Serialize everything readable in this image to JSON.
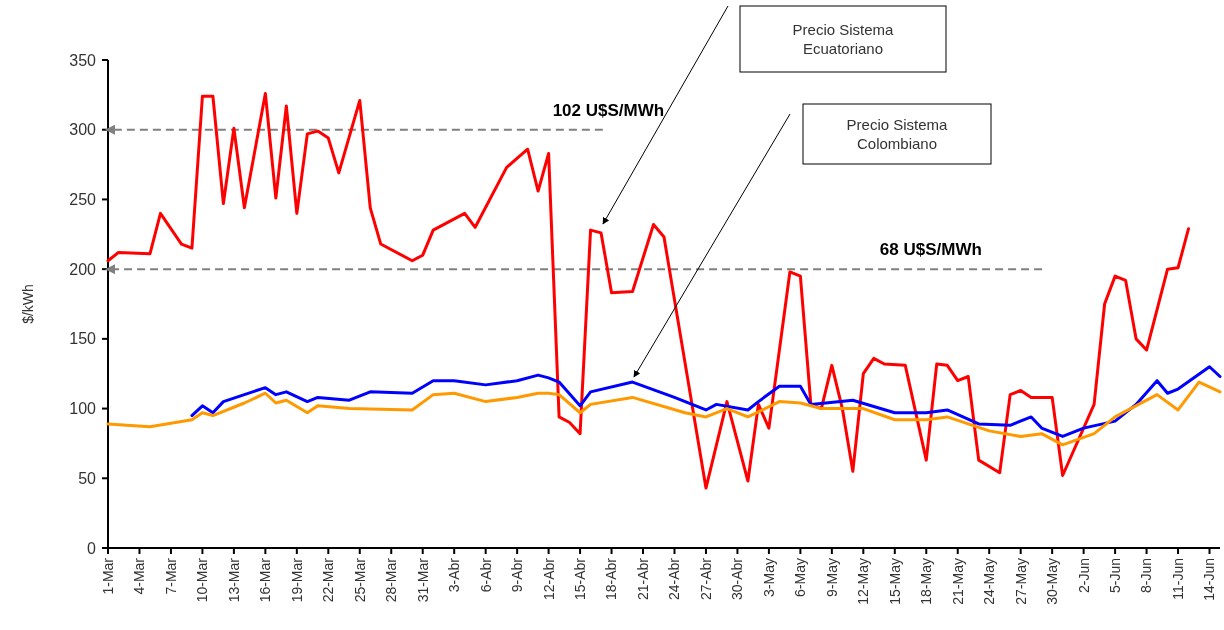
{
  "chart_data": {
    "type": "line",
    "ylabel": "$/kWh",
    "ylim": [
      0,
      350
    ],
    "yticks": [
      0,
      50,
      100,
      150,
      200,
      250,
      300,
      350
    ],
    "xlim": [
      "--03-01",
      "--06-15"
    ],
    "xticks": [
      {
        "value": "--03-01",
        "label": "1-Mar"
      },
      {
        "value": "--03-04",
        "label": "4-Mar"
      },
      {
        "value": "--03-07",
        "label": "7-Mar"
      },
      {
        "value": "--03-10",
        "label": "10-Mar"
      },
      {
        "value": "--03-13",
        "label": "13-Mar"
      },
      {
        "value": "--03-16",
        "label": "16-Mar"
      },
      {
        "value": "--03-19",
        "label": "19-Mar"
      },
      {
        "value": "--03-22",
        "label": "22-Mar"
      },
      {
        "value": "--03-25",
        "label": "25-Mar"
      },
      {
        "value": "--03-28",
        "label": "28-Mar"
      },
      {
        "value": "--03-31",
        "label": "31-Mar"
      },
      {
        "value": "--04-03",
        "label": "3-Abr"
      },
      {
        "value": "--04-06",
        "label": "6-Abr"
      },
      {
        "value": "--04-09",
        "label": "9-Abr"
      },
      {
        "value": "--04-12",
        "label": "12-Abr"
      },
      {
        "value": "--04-15",
        "label": "15-Abr"
      },
      {
        "value": "--04-18",
        "label": "18-Abr"
      },
      {
        "value": "--04-21",
        "label": "21-Abr"
      },
      {
        "value": "--04-24",
        "label": "24-Abr"
      },
      {
        "value": "--04-27",
        "label": "27-Abr"
      },
      {
        "value": "--04-30",
        "label": "30-Abr"
      },
      {
        "value": "--05-03",
        "label": "3-May"
      },
      {
        "value": "--05-06",
        "label": "6-May"
      },
      {
        "value": "--05-09",
        "label": "9-May"
      },
      {
        "value": "--05-12",
        "label": "12-May"
      },
      {
        "value": "--05-15",
        "label": "15-May"
      },
      {
        "value": "--05-18",
        "label": "18-May"
      },
      {
        "value": "--05-21",
        "label": "21-May"
      },
      {
        "value": "--05-24",
        "label": "24-May"
      },
      {
        "value": "--05-27",
        "label": "27-May"
      },
      {
        "value": "--05-30",
        "label": "30-May"
      },
      {
        "value": "--06-02",
        "label": "2-Jun"
      },
      {
        "value": "--06-05",
        "label": "5-Jun"
      },
      {
        "value": "--06-08",
        "label": "8-Jun"
      },
      {
        "value": "--06-11",
        "label": "11-Jun"
      },
      {
        "value": "--06-14",
        "label": "14-Jun"
      }
    ],
    "grid": false,
    "line_style": "solid",
    "series": [
      {
        "color": "#ff0000",
        "x": [
          "--03-01",
          "--03-02",
          "--03-05",
          "--03-06",
          "--03-08",
          "--03-09",
          "--03-10",
          "--03-11",
          "--03-12",
          "--03-13",
          "--03-14",
          "--03-16",
          "--03-17",
          "--03-18",
          "--03-19",
          "--03-20",
          "--03-21",
          "--03-22",
          "--03-23",
          "--03-25",
          "--03-26",
          "--03-27",
          "--03-30",
          "--03-31",
          "--04-01",
          "--04-04",
          "--04-05",
          "--04-08",
          "--04-10",
          "--04-11",
          "--04-12",
          "--04-13",
          "--04-14",
          "--04-15",
          "--04-16",
          "--04-17",
          "--04-18",
          "--04-20",
          "--04-22",
          "--04-23",
          "--04-27",
          "--04-29",
          "--05-01",
          "--05-02",
          "--05-03",
          "--05-05",
          "--05-06",
          "--05-07",
          "--05-08",
          "--05-09",
          "--05-10",
          "--05-11",
          "--05-12",
          "--05-13",
          "--05-14",
          "--05-16",
          "--05-18",
          "--05-19",
          "--05-20",
          "--05-21",
          "--05-22",
          "--05-23",
          "--05-25",
          "--05-26",
          "--05-27",
          "--05-28",
          "--05-30",
          "--05-31",
          "--06-03",
          "--06-04",
          "--06-05",
          "--06-06",
          "--06-07",
          "--06-08",
          "--06-10",
          "--06-11",
          "--06-12"
        ],
        "values": [
          206,
          212,
          211,
          240,
          218,
          215,
          324,
          324,
          247,
          301,
          244,
          326,
          251,
          317,
          240,
          297,
          299,
          294,
          269,
          321,
          244,
          218,
          206,
          210,
          228,
          240,
          230,
          273,
          286,
          256,
          283,
          94,
          90,
          82,
          228,
          226,
          183,
          184,
          232,
          223,
          43,
          105,
          48,
          103,
          86,
          198,
          195,
          103,
          100,
          131,
          100,
          55,
          125,
          136,
          132,
          131,
          63,
          132,
          131,
          120,
          123,
          63,
          54,
          110,
          113,
          108,
          108,
          52,
          103,
          175,
          195,
          192,
          150,
          142,
          200,
          201,
          229
        ]
      },
      {
        "color": "#0000ff",
        "x": [
          "--03-09",
          "--03-10",
          "--03-11",
          "--03-12",
          "--03-14",
          "--03-16",
          "--03-17",
          "--03-18",
          "--03-20",
          "--03-21",
          "--03-24",
          "--03-26",
          "--03-30",
          "--04-01",
          "--04-03",
          "--04-06",
          "--04-09",
          "--04-11",
          "--04-12",
          "--04-13",
          "--04-15",
          "--04-16",
          "--04-20",
          "--04-24",
          "--04-27",
          "--04-28",
          "--05-01",
          "--05-02",
          "--05-04",
          "--05-06",
          "--05-07",
          "--05-11",
          "--05-15",
          "--05-18",
          "--05-20",
          "--05-23",
          "--05-26",
          "--05-28",
          "--05-29",
          "--05-31",
          "--06-02",
          "--06-05",
          "--06-07",
          "--06-09",
          "--06-10",
          "--06-11",
          "--06-14",
          "--06-15"
        ],
        "values": [
          95,
          102,
          97,
          105,
          110,
          115,
          110,
          112,
          105,
          108,
          106,
          112,
          111,
          120,
          120,
          117,
          120,
          124,
          122,
          119,
          102,
          112,
          119,
          108,
          99,
          103,
          99,
          105,
          116,
          116,
          103,
          106,
          97,
          97,
          99,
          89,
          88,
          94,
          86,
          80,
          86,
          91,
          103,
          120,
          111,
          114,
          130,
          123
        ]
      },
      {
        "color": "#ff9900",
        "x": [
          "--03-01",
          "--03-05",
          "--03-09",
          "--03-10",
          "--03-11",
          "--03-14",
          "--03-16",
          "--03-17",
          "--03-18",
          "--03-20",
          "--03-21",
          "--03-24",
          "--03-30",
          "--04-01",
          "--04-03",
          "--04-06",
          "--04-09",
          "--04-11",
          "--04-12",
          "--04-13",
          "--04-15",
          "--04-16",
          "--04-20",
          "--04-25",
          "--04-27",
          "--04-29",
          "--05-01",
          "--05-04",
          "--05-06",
          "--05-08",
          "--05-12",
          "--05-15",
          "--05-18",
          "--05-20",
          "--05-24",
          "--05-27",
          "--05-29",
          "--05-31",
          "--06-03",
          "--06-05",
          "--06-09",
          "--06-11",
          "--06-13",
          "--06-15"
        ],
        "values": [
          89,
          87,
          92,
          97,
          95,
          104,
          111,
          104,
          106,
          97,
          102,
          100,
          99,
          110,
          111,
          105,
          108,
          111,
          111,
          110,
          97,
          103,
          108,
          97,
          94,
          100,
          94,
          105,
          104,
          100,
          100,
          92,
          92,
          94,
          84,
          80,
          82,
          74,
          82,
          94,
          110,
          99,
          119,
          112
        ]
      }
    ],
    "ref_lines": [
      {
        "axis": "y",
        "value": 300,
        "label": "102 U$S/MWh",
        "color": "#808080",
        "line_style": "dashed"
      },
      {
        "axis": "y",
        "value": 200,
        "label": "68 U$S/MWh",
        "color": "#808080",
        "line_style": "dashed"
      }
    ],
    "annotations": [
      "Precio Sistema Ecuatoriano",
      "Precio Sistema Colombiano"
    ]
  }
}
